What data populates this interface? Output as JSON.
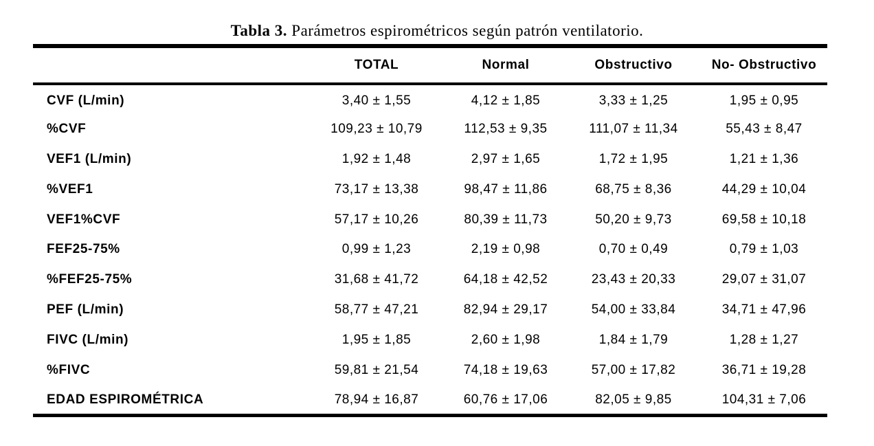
{
  "caption": {
    "label": "Tabla 3.",
    "text": "Parámetros espirométricos según patrón ventilatorio."
  },
  "table": {
    "columns": [
      "",
      "TOTAL",
      "Normal",
      "Obstructivo",
      "No- Obstructivo"
    ],
    "rows": [
      {
        "label": "CVF (L/min)",
        "total": "3,40 ± 1,55",
        "normal": "4,12 ± 1,85",
        "obstructivo": "3,33 ± 1,25",
        "no_obstructivo": "1,95 ± 0,95"
      },
      {
        "label": "%CVF",
        "total": "109,23 ± 10,79",
        "normal": "112,53 ± 9,35",
        "obstructivo": "111,07 ± 11,34",
        "no_obstructivo": "55,43 ± 8,47"
      },
      {
        "label": "VEF1 (L/min)",
        "total": "1,92 ± 1,48",
        "normal": "2,97 ± 1,65",
        "obstructivo": "1,72 ± 1,95",
        "no_obstructivo": "1,21 ± 1,36"
      },
      {
        "label": "%VEF1",
        "total": "73,17 ± 13,38",
        "normal": "98,47 ± 11,86",
        "obstructivo": "68,75 ± 8,36",
        "no_obstructivo": "44,29 ± 10,04"
      },
      {
        "label": "VEF1%CVF",
        "total": "57,17 ± 10,26",
        "normal": "80,39 ± 11,73",
        "obstructivo": "50,20 ± 9,73",
        "no_obstructivo": "69,58 ± 10,18"
      },
      {
        "label": "FEF25-75%",
        "total": "0,99 ± 1,23",
        "normal": "2,19 ± 0,98",
        "obstructivo": "0,70 ± 0,49",
        "no_obstructivo": "0,79 ± 1,03"
      },
      {
        "label": "%FEF25-75%",
        "total": "31,68 ± 41,72",
        "normal": "64,18 ± 42,52",
        "obstructivo": "23,43 ± 20,33",
        "no_obstructivo": "29,07 ± 31,07"
      },
      {
        "label": "PEF (L/min)",
        "total": "58,77 ± 47,21",
        "normal": "82,94 ± 29,17",
        "obstructivo": "54,00 ± 33,84",
        "no_obstructivo": "34,71 ± 47,96"
      },
      {
        "label": "FIVC (L/min)",
        "total": "1,95 ± 1,85",
        "normal": "2,60 ± 1,98",
        "obstructivo": "1,84 ± 1,79",
        "no_obstructivo": "1,28 ± 1,27"
      },
      {
        "label": "%FIVC",
        "total": "59,81 ± 21,54",
        "normal": "74,18 ± 19,63",
        "obstructivo": "57,00 ± 17,82",
        "no_obstructivo": "36,71 ± 19,28"
      },
      {
        "label": "EDAD ESPIROMÉTRICA",
        "total": "78,94 ± 16,87",
        "normal": "60,76 ± 17,06",
        "obstructivo": "82,05 ± 9,85",
        "no_obstructivo": "104,31 ± 7,06"
      }
    ]
  }
}
